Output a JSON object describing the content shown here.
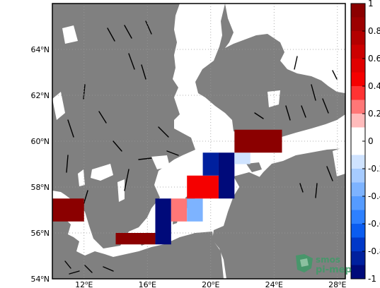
{
  "map": {
    "lat_axis": {
      "ticks": [
        {
          "value": 54,
          "deg": "54",
          "hemi": "N"
        },
        {
          "value": 56,
          "deg": "56",
          "hemi": "N"
        },
        {
          "value": 58,
          "deg": "58",
          "hemi": "N"
        },
        {
          "value": 60,
          "deg": "60",
          "hemi": "N"
        },
        {
          "value": 62,
          "deg": "62",
          "hemi": "N"
        },
        {
          "value": 64,
          "deg": "64",
          "hemi": "N"
        }
      ]
    },
    "lon_axis": {
      "ticks": [
        {
          "value": 12,
          "deg": "12",
          "hemi": "E"
        },
        {
          "value": 16,
          "deg": "16",
          "hemi": "E"
        },
        {
          "value": 20,
          "deg": "20",
          "hemi": "E"
        },
        {
          "value": 24,
          "deg": "24",
          "hemi": "E"
        },
        {
          "value": 28,
          "deg": "28",
          "hemi": "E"
        }
      ]
    },
    "extent": {
      "lon_min": 10.0,
      "lon_max": 28.5,
      "lat_min": 54.0,
      "lat_max": 66.0
    },
    "colors": {
      "land": "#808080",
      "sea": "#ffffff",
      "grid": "#999999",
      "frame": "#000000"
    }
  },
  "chart_data": {
    "type": "heatmap",
    "title": "",
    "xlabel": "",
    "ylabel": "",
    "colorbar": {
      "vmin": -1,
      "vmax": 1,
      "tick_values": [
        1,
        0.8,
        0.6,
        0.4,
        0.2,
        0,
        -0.2,
        -0.4,
        -0.6,
        -0.8,
        -1
      ],
      "tick_labels": [
        "1",
        "0.8",
        "0.6",
        "0.4",
        "0.2",
        "0",
        "-0.2",
        "-0.4",
        "-0.6",
        "-0.8",
        "-1"
      ],
      "bins": [
        {
          "from": 0.9,
          "to": 1.0,
          "color": "#8b0000"
        },
        {
          "from": 0.8,
          "to": 0.9,
          "color": "#9c0000"
        },
        {
          "from": 0.7,
          "to": 0.8,
          "color": "#b30000"
        },
        {
          "from": 0.6,
          "to": 0.7,
          "color": "#cc0000"
        },
        {
          "from": 0.5,
          "to": 0.6,
          "color": "#e00000"
        },
        {
          "from": 0.4,
          "to": 0.5,
          "color": "#f50000"
        },
        {
          "from": 0.3,
          "to": 0.4,
          "color": "#ff3333"
        },
        {
          "from": 0.2,
          "to": 0.3,
          "color": "#ff7777"
        },
        {
          "from": 0.1,
          "to": 0.2,
          "color": "#ffbbbb"
        },
        {
          "from": 0.0,
          "to": 0.1,
          "color": "#ffffff"
        },
        {
          "from": -0.1,
          "to": 0.0,
          "color": "#ffffff"
        },
        {
          "from": -0.2,
          "to": -0.1,
          "color": "#cfe3ff"
        },
        {
          "from": -0.3,
          "to": -0.2,
          "color": "#a6cbff"
        },
        {
          "from": -0.4,
          "to": -0.3,
          "color": "#7db3ff"
        },
        {
          "from": -0.5,
          "to": -0.4,
          "color": "#559bff"
        },
        {
          "from": -0.6,
          "to": -0.5,
          "color": "#2d80ff"
        },
        {
          "from": -0.7,
          "to": -0.6,
          "color": "#0a5cf0"
        },
        {
          "from": -0.8,
          "to": -0.7,
          "color": "#0038c8"
        },
        {
          "from": -0.9,
          "to": -0.8,
          "color": "#00209e"
        },
        {
          "from": -1.0,
          "to": -0.9,
          "color": "#000a7a"
        }
      ]
    },
    "cells": [
      {
        "lon0": 10.0,
        "lon1": 12.0,
        "lat0": 56.5,
        "lat1": 57.5,
        "value": 0.95
      },
      {
        "lon0": 14.0,
        "lon1": 16.5,
        "lat0": 55.5,
        "lat1": 56.0,
        "value": 0.95
      },
      {
        "lon0": 16.5,
        "lon1": 17.5,
        "lat0": 55.5,
        "lat1": 57.5,
        "value": -0.95
      },
      {
        "lon0": 17.5,
        "lon1": 18.5,
        "lat0": 56.5,
        "lat1": 57.5,
        "value": 0.25
      },
      {
        "lon0": 18.5,
        "lon1": 19.5,
        "lat0": 56.5,
        "lat1": 57.5,
        "value": -0.35
      },
      {
        "lon0": 18.5,
        "lon1": 20.5,
        "lat0": 57.5,
        "lat1": 58.5,
        "value": 0.45
      },
      {
        "lon0": 19.5,
        "lon1": 20.5,
        "lat0": 58.5,
        "lat1": 59.5,
        "value": -0.85
      },
      {
        "lon0": 20.5,
        "lon1": 21.5,
        "lat0": 57.5,
        "lat1": 59.5,
        "value": -0.95
      },
      {
        "lon0": 21.5,
        "lon1": 22.5,
        "lat0": 59.0,
        "lat1": 59.5,
        "value": -0.15
      },
      {
        "lon0": 21.5,
        "lon1": 24.5,
        "lat0": 59.5,
        "lat1": 60.5,
        "value": 0.95
      }
    ]
  },
  "watermark": {
    "line1": "smos",
    "line2": "pi-mep",
    "color": "#3f9a68",
    "icon": "smos-pimep-logo-icon"
  }
}
